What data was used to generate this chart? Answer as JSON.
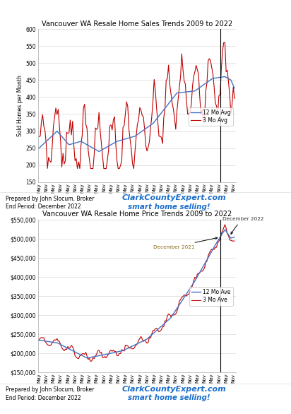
{
  "chart1": {
    "title": "Vancouver WA Resale Home Sales Trends 2009 to 2022",
    "ylabel": "Sold Homes per Month",
    "ylim": [
      150,
      600
    ],
    "yticks": [
      150,
      200,
      250,
      300,
      350,
      400,
      450,
      500,
      550,
      600
    ],
    "line12_color": "#4472C4",
    "line3_color": "#C00000",
    "legend_labels": [
      "12 Mo Avg",
      "3 Mo Avg"
    ]
  },
  "chart2": {
    "title": "Vancouver WA Resale Home Price Trends 2009 to 2022",
    "ylim": [
      150000,
      550000
    ],
    "yticks": [
      150000,
      200000,
      250000,
      300000,
      350000,
      400000,
      450000,
      500000,
      550000
    ],
    "line12_color": "#4472C4",
    "line3_color": "#C00000",
    "legend_labels": [
      "12 Mo Ave",
      "3 Mo Ave"
    ],
    "annotation1_text": "December 2021",
    "annotation2_text": "December 2022"
  },
  "footer_text": "Prepared by John Slocum, Broker\nEnd Period: December 2022",
  "watermark_line1": "ClarkCountyExpert.com",
  "watermark_line2": "smart home selling!",
  "watermark_color": "#1B6FCC",
  "bg_color": "#FFFFFF"
}
